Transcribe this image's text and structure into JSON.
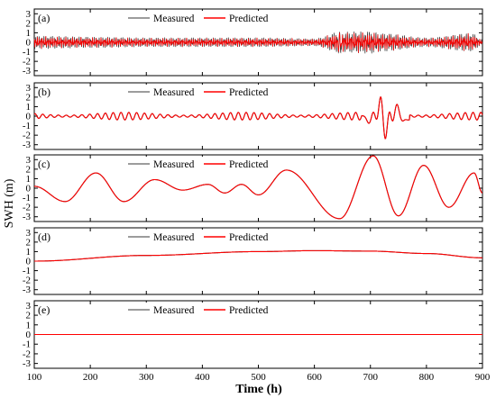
{
  "chart_data": {
    "type": "line",
    "xlabel": "Time (h)",
    "ylabel": "SWH (m)",
    "xlim": [
      100,
      900
    ],
    "xticks": [
      100,
      200,
      300,
      400,
      500,
      600,
      700,
      800,
      900
    ],
    "ylim": [
      -3.5,
      3.5
    ],
    "yticks": [
      3,
      2,
      1,
      0,
      -1,
      -2,
      -3
    ],
    "legend_placement": "top-center",
    "colors": {
      "measured": "#3a3a3a",
      "predicted": "#ff0000"
    },
    "panels": [
      {
        "tag": "(a)",
        "series": [
          {
            "name": "Measured",
            "color": "#3a3a3a"
          },
          {
            "name": "Predicted",
            "color": "#ff0000"
          }
        ],
        "approx_points": {
          "x": [
            100,
            200,
            300,
            400,
            500,
            600,
            645,
            700,
            720,
            800,
            880,
            900
          ],
          "y_envelope": [
            0.7,
            0.6,
            0.5,
            0.5,
            0.5,
            0.4,
            1.1,
            1.2,
            1.0,
            0.5,
            1.0,
            0.3
          ]
        }
      },
      {
        "tag": "(b)",
        "series": [
          {
            "name": "Measured",
            "color": "#3a3a3a"
          },
          {
            "name": "Predicted",
            "color": "#ff0000"
          }
        ],
        "approx_points": {
          "x": [
            100,
            300,
            500,
            680,
            700,
            715,
            730,
            745,
            760,
            800,
            900
          ],
          "y": [
            0.2,
            0.4,
            0.4,
            0.3,
            -1.0,
            1.8,
            -2.3,
            1.7,
            -0.9,
            0.4,
            0.3
          ]
        }
      },
      {
        "tag": "(c)",
        "series": [
          {
            "name": "Measured",
            "color": "#3a3a3a"
          },
          {
            "name": "Predicted",
            "color": "#ff0000"
          }
        ],
        "approx_points": {
          "x": [
            100,
            155,
            210,
            260,
            315,
            365,
            410,
            440,
            470,
            500,
            550,
            645,
            705,
            750,
            795,
            840,
            885,
            900
          ],
          "y": [
            0.2,
            -1.4,
            1.6,
            -1.4,
            0.9,
            -0.2,
            0.4,
            -0.5,
            0.4,
            -0.7,
            1.9,
            -3.2,
            3.4,
            -2.9,
            2.4,
            -2.0,
            1.6,
            -0.5
          ]
        }
      },
      {
        "tag": "(d)",
        "series": [
          {
            "name": "Measured",
            "color": "#3a3a3a"
          },
          {
            "name": "Predicted",
            "color": "#ff0000"
          }
        ],
        "approx_points": {
          "x": [
            100,
            300,
            500,
            600,
            700,
            800,
            900
          ],
          "y": [
            0.0,
            0.6,
            1.0,
            1.1,
            1.05,
            0.8,
            0.35
          ]
        }
      },
      {
        "tag": "(e)",
        "series": [
          {
            "name": "Measured",
            "color": "#3a3a3a"
          },
          {
            "name": "Predicted",
            "color": "#ff0000"
          }
        ],
        "approx_points": {
          "x": [
            100,
            500,
            900
          ],
          "y": [
            0.0,
            0.0,
            0.0
          ]
        }
      }
    ]
  }
}
